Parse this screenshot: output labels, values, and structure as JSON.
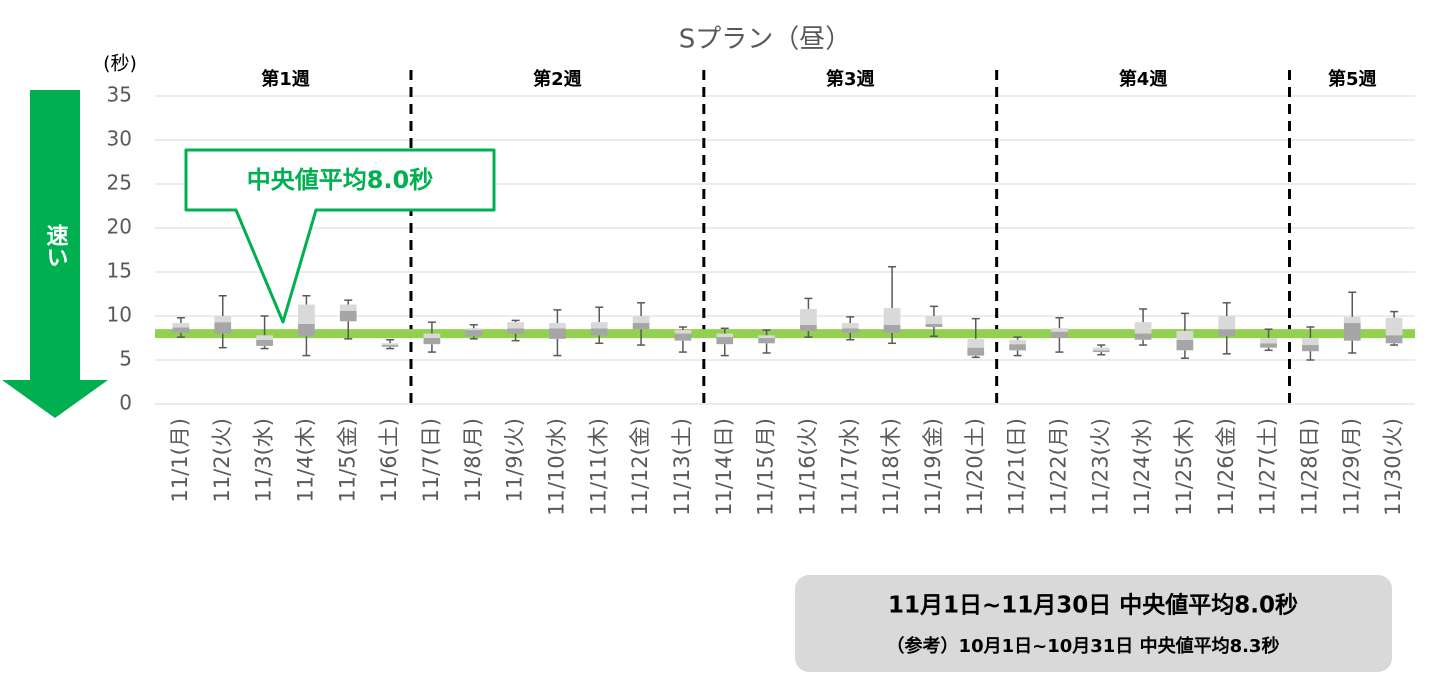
{
  "chart_data": {
    "type": "box",
    "title": "Sプラン（昼）",
    "y_unit": "(秒)",
    "categories": [
      "11/1(月)",
      "11/2(火)",
      "11/3(水)",
      "11/4(木)",
      "11/5(金)",
      "11/6(土)",
      "11/7(日)",
      "11/8(月)",
      "11/9(火)",
      "11/10(水)",
      "11/11(木)",
      "11/12(金)",
      "11/13(土)",
      "11/14(日)",
      "11/15(月)",
      "11/16(火)",
      "11/17(水)",
      "11/18(木)",
      "11/19(金)",
      "11/20(土)",
      "11/21(日)",
      "11/22(月)",
      "11/23(火)",
      "11/24(水)",
      "11/25(木)",
      "11/26(金)",
      "11/27(土)",
      "11/28(日)",
      "11/29(月)",
      "11/30(火)"
    ],
    "min": [
      7.6,
      6.4,
      6.3,
      5.5,
      7.4,
      6.3,
      5.9,
      7.4,
      7.2,
      5.5,
      6.9,
      6.7,
      5.9,
      5.5,
      5.8,
      7.6,
      7.3,
      6.9,
      7.7,
      5.3,
      5.5,
      5.9,
      5.6,
      6.7,
      5.2,
      5.7,
      6.1,
      5.0,
      5.8,
      6.7
    ],
    "q1": [
      8.1,
      8.0,
      6.6,
      7.7,
      9.4,
      6.5,
      6.8,
      7.7,
      8.0,
      7.4,
      7.8,
      8.5,
      7.2,
      6.8,
      6.9,
      8.3,
      8.1,
      8.1,
      8.75,
      5.5,
      6.1,
      7.5,
      5.9,
      7.3,
      6.1,
      7.7,
      6.4,
      6.0,
      7.2,
      6.9
    ],
    "median": [
      8.7,
      9.3,
      7.3,
      9.1,
      10.6,
      6.7,
      7.5,
      8.4,
      8.6,
      8.6,
      8.6,
      9.2,
      8.0,
      7.6,
      7.5,
      9.0,
      8.6,
      9.0,
      9.1,
      6.4,
      6.8,
      8.2,
      6.1,
      8.0,
      7.3,
      8.5,
      6.9,
      6.7,
      9.2,
      7.8
    ],
    "q3": [
      9.2,
      10.0,
      7.8,
      11.3,
      11.3,
      6.9,
      8.0,
      8.6,
      9.3,
      9.2,
      9.3,
      10.0,
      8.4,
      8.0,
      7.8,
      10.8,
      9.2,
      10.9,
      10.0,
      7.4,
      7.3,
      8.6,
      6.4,
      9.3,
      8.3,
      10.0,
      7.5,
      7.5,
      9.9,
      9.8
    ],
    "max": [
      9.8,
      12.3,
      10.0,
      12.3,
      11.8,
      7.3,
      9.3,
      9.0,
      9.5,
      10.7,
      11.0,
      11.5,
      8.75,
      8.6,
      8.4,
      12.0,
      9.9,
      15.6,
      11.1,
      9.7,
      7.6,
      9.8,
      6.7,
      10.8,
      10.3,
      11.5,
      8.5,
      8.75,
      12.7,
      10.5
    ],
    "box_colors": {
      "lower": "#a6a6a6",
      "upper": "#d9d9d9",
      "whisker": "#595959"
    },
    "ylim": [
      0,
      35
    ],
    "yticks": [
      0,
      5,
      10,
      15,
      20,
      25,
      30,
      35
    ],
    "grid": true,
    "weeks": [
      "第1週",
      "第2週",
      "第3週",
      "第4週",
      "第5週"
    ],
    "reference_line": {
      "value": 8.0,
      "color": "#92d050"
    },
    "callout": "中央値平均8.0秒",
    "direction_label": "速い",
    "summary": {
      "line1": "11月1日~11月30日  中央値平均8.0秒",
      "line2": "（参考）10月1日~10月31日  中央値平均8.3秒"
    }
  }
}
